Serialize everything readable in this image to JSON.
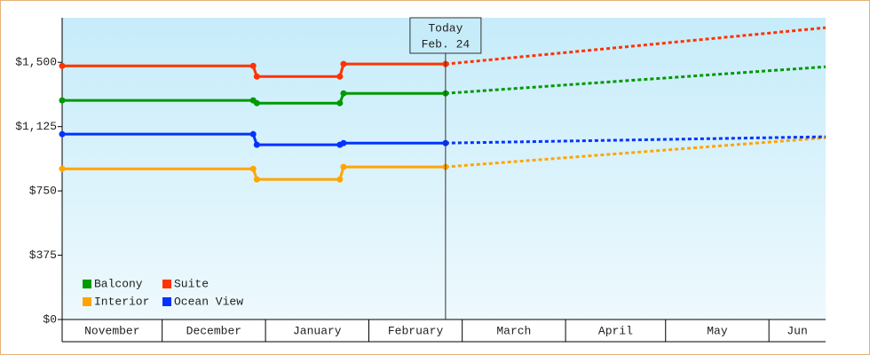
{
  "chart_data": {
    "type": "step-line",
    "ylim": [
      0,
      1760
    ],
    "yticks": [
      {
        "value": 0,
        "label": "$0"
      },
      {
        "value": 375,
        "label": "$375"
      },
      {
        "value": 750,
        "label": "$750"
      },
      {
        "value": 1125,
        "label": "$1,125"
      },
      {
        "value": 1500,
        "label": "$1,500"
      }
    ],
    "xlim": [
      0,
      229
    ],
    "month_bands": [
      {
        "label": "November",
        "start": 0,
        "end": 30
      },
      {
        "label": "December",
        "start": 30,
        "end": 61
      },
      {
        "label": "January",
        "start": 61,
        "end": 92
      },
      {
        "label": "February",
        "start": 92,
        "end": 120
      },
      {
        "label": "March",
        "start": 120,
        "end": 151
      },
      {
        "label": "April",
        "start": 151,
        "end": 181
      },
      {
        "label": "May",
        "start": 181,
        "end": 212
      },
      {
        "label": "Jun",
        "start": 212,
        "end": 229
      }
    ],
    "today": {
      "x": 115,
      "label": "Today",
      "date": "Feb. 24"
    },
    "series": [
      {
        "name": "Balcony",
        "color": "#009900",
        "x": [
          0,
          57.3,
          58.4,
          83.3,
          84.4,
          115,
          229
        ],
        "values": [
          1278,
          1278,
          1262,
          1262,
          1319,
          1319,
          1474
        ]
      },
      {
        "name": "Interior",
        "color": "#ffa500",
        "x": [
          0,
          57.3,
          58.4,
          83.3,
          84.4,
          115,
          229
        ],
        "values": [
          879,
          879,
          817,
          817,
          890,
          890,
          1060
        ]
      },
      {
        "name": "Suite",
        "color": "#ff3300",
        "x": [
          0,
          57.3,
          58.4,
          83.3,
          84.4,
          115,
          229
        ],
        "values": [
          1479,
          1479,
          1417,
          1417,
          1490,
          1490,
          1702
        ]
      },
      {
        "name": "Ocean View",
        "color": "#0033ff",
        "x": [
          0,
          57.3,
          58.4,
          83.3,
          84.4,
          115,
          229
        ],
        "values": [
          1081,
          1081,
          1019,
          1019,
          1029,
          1029,
          1066
        ]
      }
    ]
  }
}
